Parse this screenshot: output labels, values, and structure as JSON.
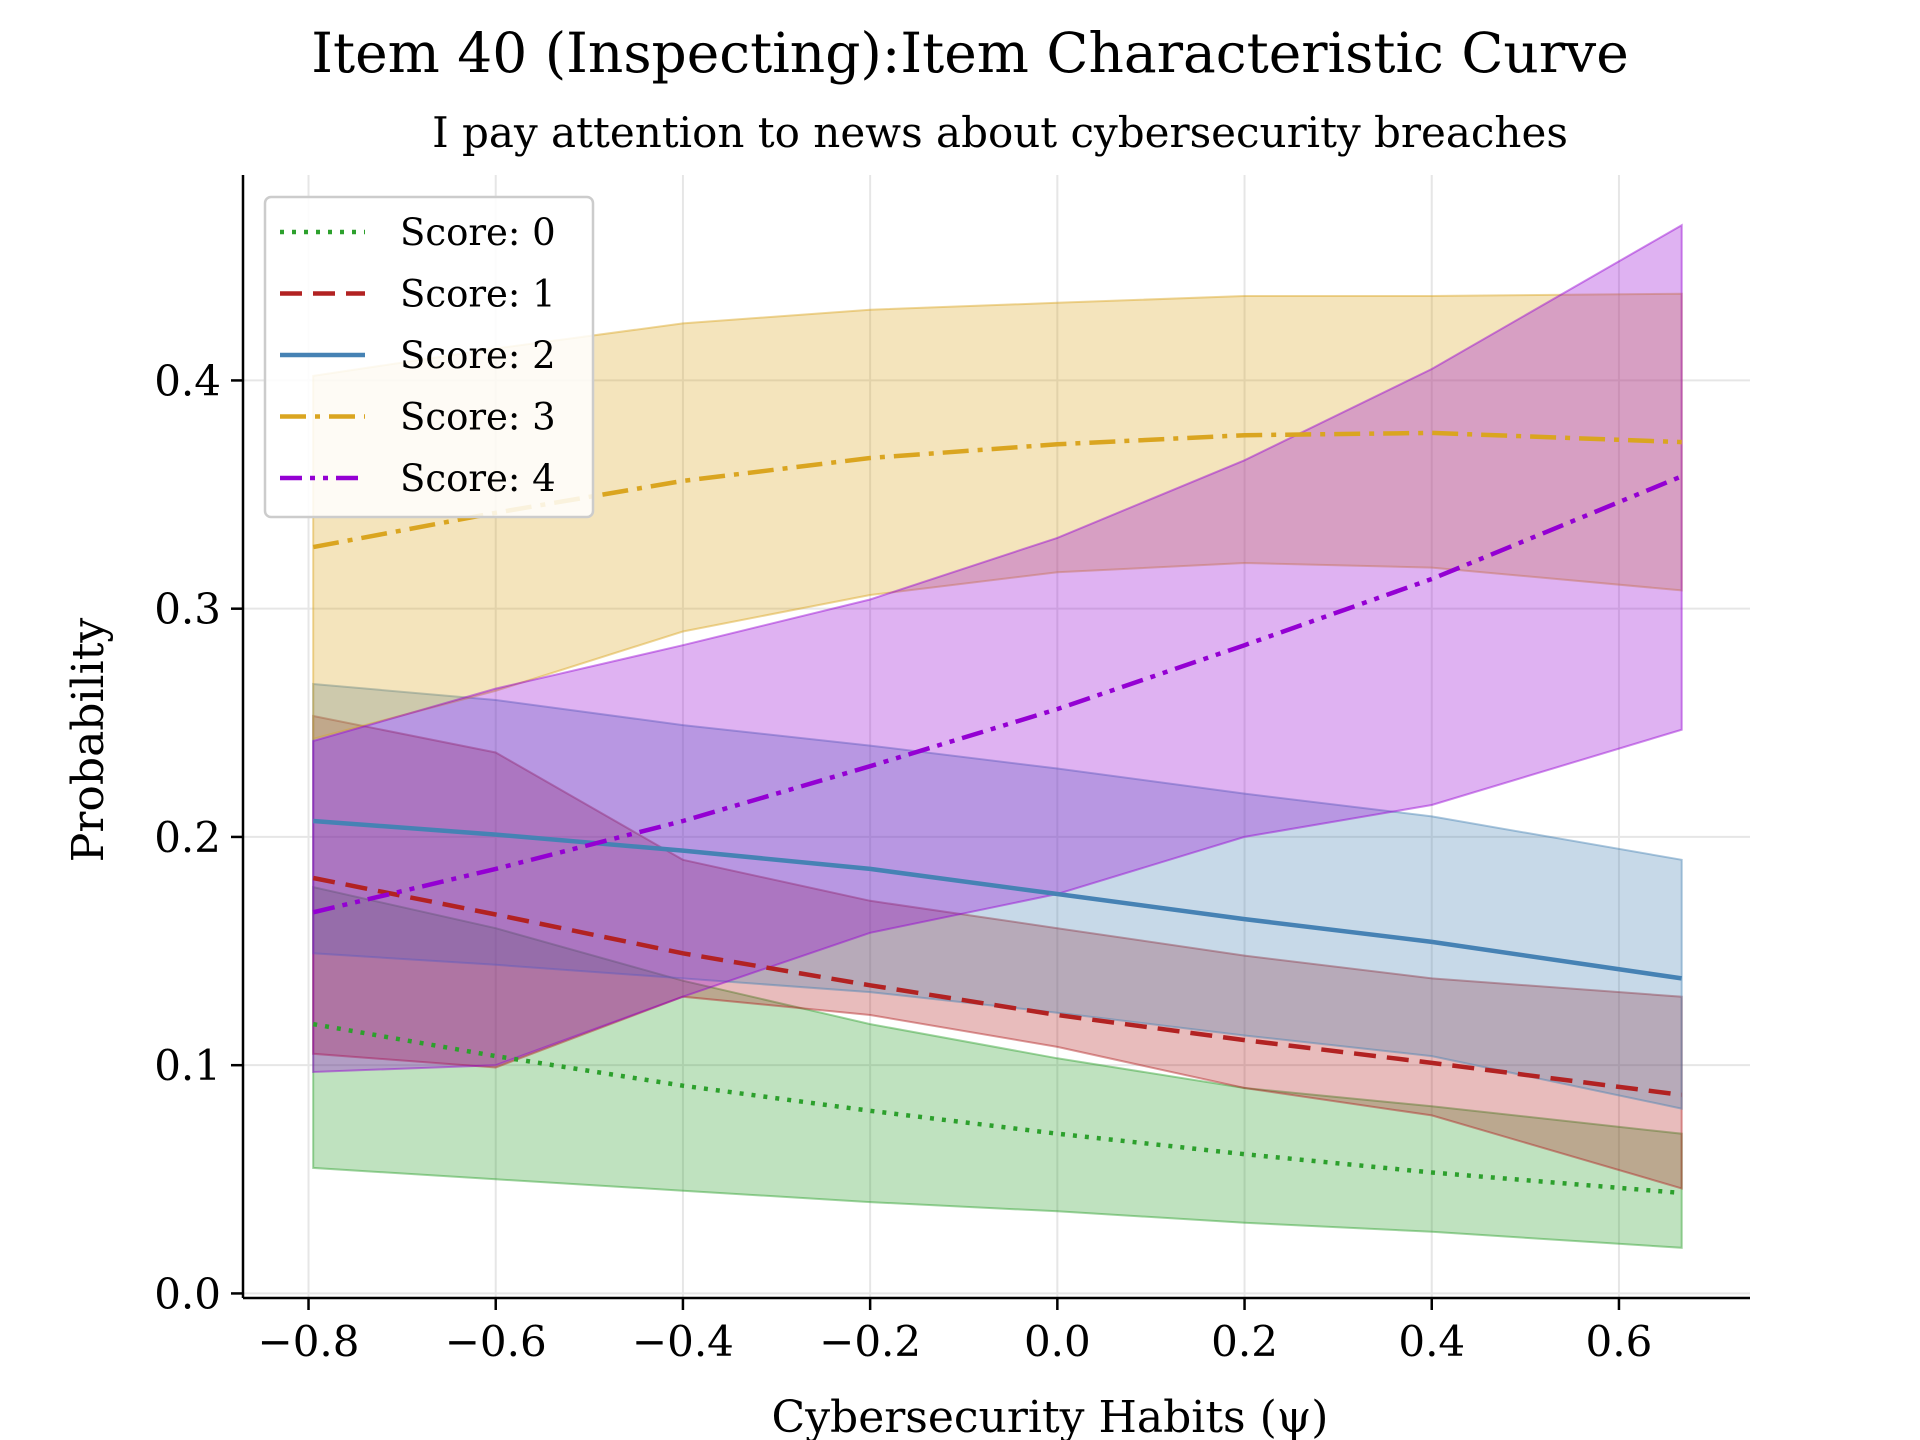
{
  "chart_data": {
    "type": "line",
    "title": "Item 40 (Inspecting):Item Characteristic Curve",
    "subtitle": "I pay attention to news about cybersecurity breaches",
    "xlabel": "Cybersecurity Habits (ψ)",
    "ylabel": "Probability",
    "xlim": [
      -0.87,
      0.74
    ],
    "ylim": [
      -0.002,
      0.49
    ],
    "xticks": [
      -0.8,
      -0.6,
      -0.4,
      -0.2,
      0.0,
      0.2,
      0.4,
      0.6
    ],
    "xtick_labels": [
      "−0.8",
      "−0.6",
      "−0.4",
      "−0.2",
      "0.0",
      "0.2",
      "0.4",
      "0.6"
    ],
    "yticks": [
      0.0,
      0.1,
      0.2,
      0.3,
      0.4
    ],
    "ytick_labels": [
      "0.0",
      "0.1",
      "0.2",
      "0.3",
      "0.4"
    ],
    "grid": true,
    "legend_position": "top-left",
    "x": [
      -0.795,
      -0.6,
      -0.4,
      -0.2,
      0.0,
      0.2,
      0.4,
      0.667
    ],
    "series": [
      {
        "name": "Score: 0",
        "color": "#2ca02c",
        "dash": "dotted",
        "values": [
          0.118,
          0.104,
          0.091,
          0.08,
          0.07,
          0.061,
          0.053,
          0.044
        ],
        "lower": [
          0.055,
          0.05,
          0.045,
          0.04,
          0.036,
          0.031,
          0.027,
          0.02
        ],
        "upper": [
          0.178,
          0.16,
          0.137,
          0.118,
          0.103,
          0.09,
          0.082,
          0.07
        ]
      },
      {
        "name": "Score: 1",
        "color": "#b22222",
        "dash": "dashed",
        "values": [
          0.182,
          0.166,
          0.149,
          0.135,
          0.122,
          0.111,
          0.101,
          0.087
        ],
        "lower": [
          0.105,
          0.099,
          0.13,
          0.122,
          0.108,
          0.09,
          0.078,
          0.046
        ],
        "upper": [
          0.253,
          0.237,
          0.19,
          0.172,
          0.16,
          0.148,
          0.138,
          0.13
        ]
      },
      {
        "name": "Score: 2",
        "color": "#4682b4",
        "dash": "solid",
        "values": [
          0.207,
          0.201,
          0.194,
          0.186,
          0.175,
          0.164,
          0.154,
          0.138
        ],
        "lower": [
          0.149,
          0.144,
          0.138,
          0.132,
          0.123,
          0.113,
          0.104,
          0.081
        ],
        "upper": [
          0.267,
          0.26,
          0.249,
          0.24,
          0.23,
          0.219,
          0.209,
          0.19
        ]
      },
      {
        "name": "Score: 3",
        "color": "#daa520",
        "dash": "dashdot",
        "values": [
          0.327,
          0.342,
          0.356,
          0.366,
          0.372,
          0.376,
          0.377,
          0.373
        ],
        "lower": [
          0.243,
          0.264,
          0.29,
          0.306,
          0.316,
          0.32,
          0.318,
          0.308
        ],
        "upper": [
          0.402,
          0.414,
          0.425,
          0.431,
          0.434,
          0.437,
          0.437,
          0.438
        ]
      },
      {
        "name": "Score: 4",
        "color": "#9400d3",
        "dash": "dashdotdot",
        "values": [
          0.167,
          0.186,
          0.207,
          0.231,
          0.256,
          0.284,
          0.313,
          0.358
        ],
        "lower": [
          0.097,
          0.1,
          0.13,
          0.158,
          0.175,
          0.2,
          0.214,
          0.247
        ],
        "upper": [
          0.242,
          0.265,
          0.284,
          0.304,
          0.331,
          0.365,
          0.405,
          0.468
        ]
      }
    ]
  }
}
